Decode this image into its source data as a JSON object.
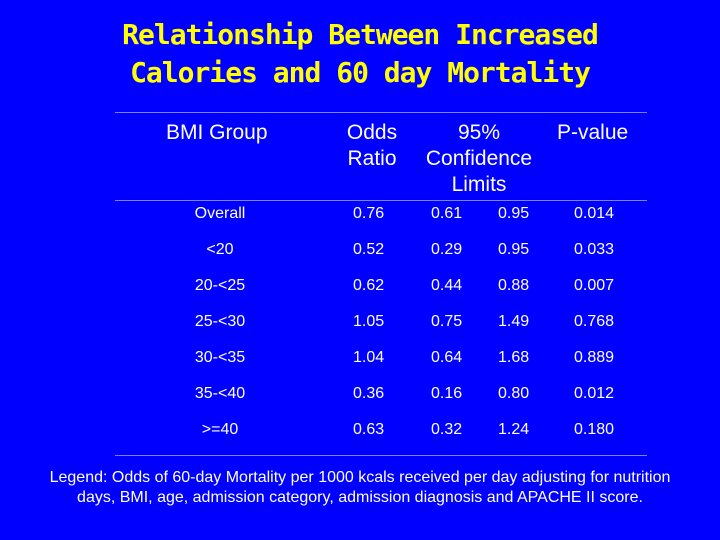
{
  "title": {
    "line1": "Relationship Between Increased",
    "line2": "Calories and 60 day Mortality"
  },
  "table": {
    "headers": {
      "group": "BMI Group",
      "odds": [
        "Odds",
        "Ratio"
      ],
      "ci": [
        "95%",
        "Confidence",
        "Limits"
      ],
      "pvalue": "P-value"
    },
    "rows": [
      {
        "group": "Overall",
        "odds": "0.76",
        "lower": "0.61",
        "upper": "0.95",
        "p": "0.014"
      },
      {
        "group": "<20",
        "odds": "0.52",
        "lower": "0.29",
        "upper": "0.95",
        "p": "0.033"
      },
      {
        "group": "20-<25",
        "odds": "0.62",
        "lower": "0.44",
        "upper": "0.88",
        "p": "0.007"
      },
      {
        "group": "25-<30",
        "odds": "1.05",
        "lower": "0.75",
        "upper": "1.49",
        "p": "0.768"
      },
      {
        "group": "30-<35",
        "odds": "1.04",
        "lower": "0.64",
        "upper": "1.68",
        "p": "0.889"
      },
      {
        "group": "35-<40",
        "odds": "0.36",
        "lower": "0.16",
        "upper": "0.80",
        "p": "0.012"
      },
      {
        "group": ">=40",
        "odds": "0.63",
        "lower": "0.32",
        "upper": "1.24",
        "p": "0.180"
      }
    ]
  },
  "legend": {
    "line1": "Legend: Odds of 60-day Mortality per 1000 kcals received per day adjusting for nutrition",
    "line2": "days, BMI, age, admission category, admission diagnosis and APACHE II score."
  },
  "colors": {
    "background": "#0000ff",
    "title": "#ffff00",
    "text": "#ffffff"
  }
}
